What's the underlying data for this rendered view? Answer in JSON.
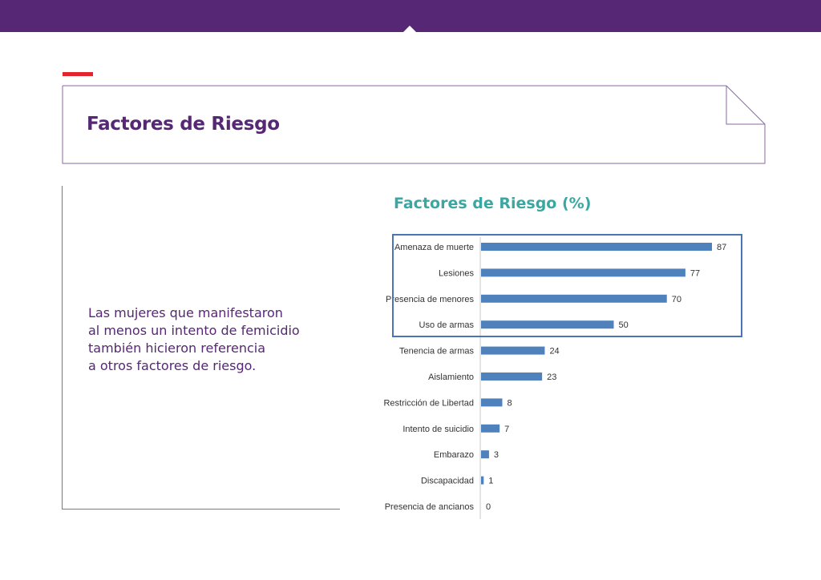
{
  "header": {
    "title": "Factores de Riesgo"
  },
  "main": {
    "description_lines": [
      "Las mujeres que manifestaron",
      "al menos un intento de femicidio",
      "también hicieron referencia",
      "a otros factores de riesgo."
    ]
  },
  "colors": {
    "brand_purple": "#562774",
    "accent_red": "#e3242b",
    "chart_title_teal": "#3aa7a3",
    "bar_blue": "#4f81bd",
    "highlight_border": "#4a74b5"
  },
  "chart_data": {
    "type": "bar",
    "orientation": "horizontal",
    "title": "Factores de Riesgo (%)",
    "categories": [
      "Amenaza de muerte",
      "Lesiones",
      "Presencia de menores",
      "Uso de armas",
      "Tenencia de armas",
      "Aislamiento",
      "Restricción de Libertad",
      "Intento de suicidio",
      "Embarazo",
      "Discapacidad",
      "Presencia de ancianos"
    ],
    "values": [
      87,
      77,
      70,
      50,
      24,
      23,
      8,
      7,
      3,
      1,
      0
    ],
    "highlighted_categories": [
      "Amenaza de muerte",
      "Lesiones",
      "Presencia de menores",
      "Uso de armas"
    ],
    "xlim": [
      0,
      100
    ],
    "grid": false,
    "data_labels": true
  }
}
